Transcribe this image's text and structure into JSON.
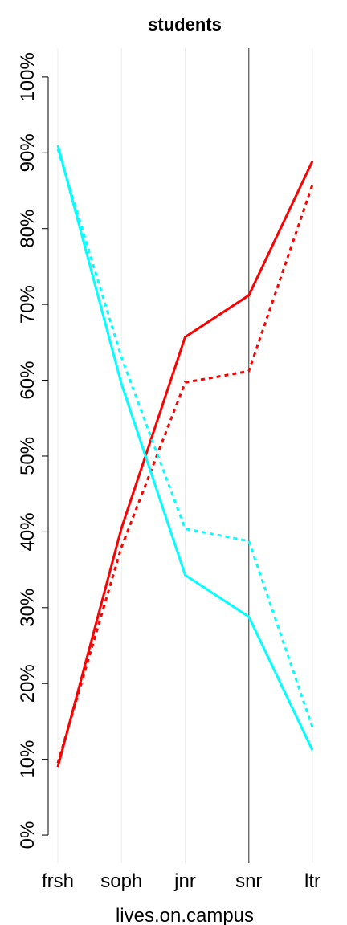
{
  "chart_data": {
    "type": "line",
    "title": "students",
    "x_label": "lives.on.campus",
    "categories": [
      "frsh",
      "soph",
      "jnr",
      "snr",
      "ltr"
    ],
    "series": [
      {
        "color": "#ff0000",
        "dashed": false,
        "values": [
          9.0,
          40.5,
          65.7,
          71.2,
          88.9
        ]
      },
      {
        "color": "#ff0000",
        "dashed": true,
        "values": [
          9.5,
          38.0,
          59.7,
          61.2,
          85.8
        ]
      },
      {
        "color": "#00ffff",
        "dashed": false,
        "values": [
          91.0,
          59.5,
          34.3,
          28.8,
          11.2
        ]
      },
      {
        "color": "#00ffff",
        "dashed": true,
        "values": [
          90.5,
          63.0,
          40.4,
          38.8,
          14.2
        ]
      }
    ],
    "ylim": [
      -3.7,
      103.8
    ],
    "yticks": [
      {
        "value": 0,
        "label": "0%"
      },
      {
        "value": 10,
        "label": "10%"
      },
      {
        "value": 20,
        "label": "20%"
      },
      {
        "value": 30,
        "label": "30%"
      },
      {
        "value": 40,
        "label": "40%"
      },
      {
        "value": 50,
        "label": "50%"
      },
      {
        "value": 60,
        "label": "60%"
      },
      {
        "value": 70,
        "label": "70%"
      },
      {
        "value": 80,
        "label": "80%"
      },
      {
        "value": 90,
        "label": "90%"
      },
      {
        "value": 100,
        "label": "100%"
      }
    ],
    "grid": true,
    "reference_line": "snr"
  }
}
